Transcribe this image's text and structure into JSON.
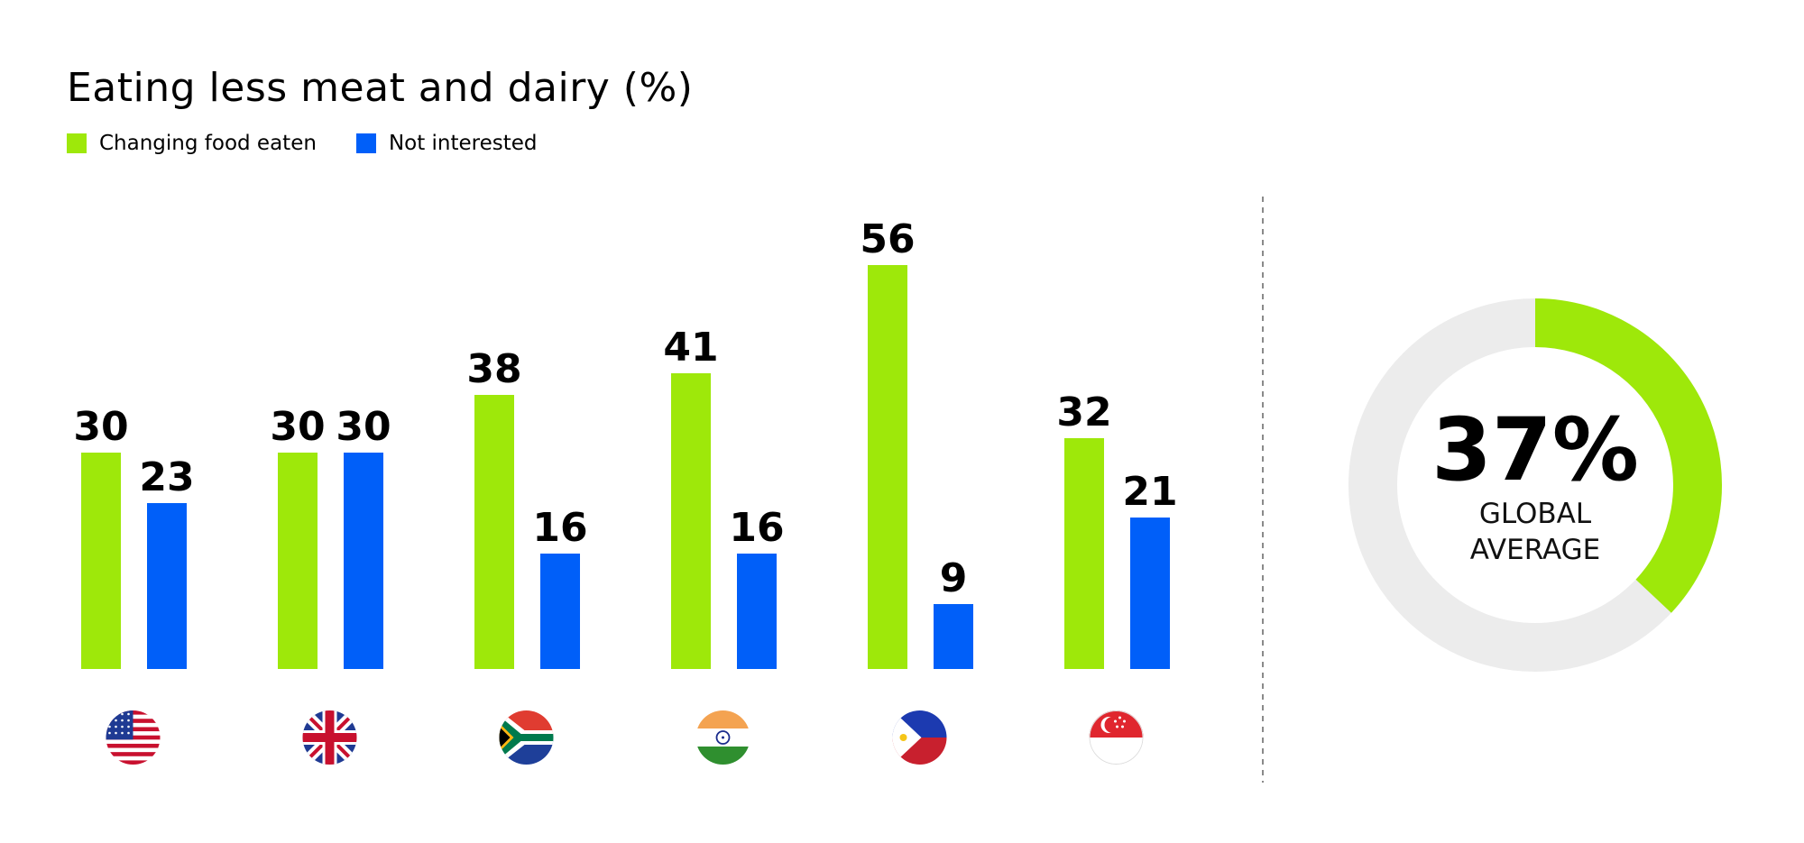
{
  "chart_data": {
    "type": "bar",
    "title": "Eating less meat and dairy (%)",
    "categories": [
      "United States",
      "United Kingdom",
      "South Africa",
      "India",
      "Philippines",
      "Singapore"
    ],
    "category_icons": [
      "flag-us-icon",
      "flag-uk-icon",
      "flag-za-icon",
      "flag-in-icon",
      "flag-ph-icon",
      "flag-sg-icon"
    ],
    "series": [
      {
        "name": "Changing food eaten",
        "color": "#9ee80a",
        "values": [
          30,
          30,
          38,
          41,
          56,
          32
        ]
      },
      {
        "name": "Not interested",
        "color": "#005ff9",
        "values": [
          23,
          30,
          16,
          16,
          9,
          21
        ]
      }
    ],
    "ylim": [
      0,
      60
    ],
    "grid": false,
    "legend_position": "top-left"
  },
  "donut": {
    "value": 37,
    "value_label": "37%",
    "caption_line1": "GLOBAL",
    "caption_line2": "AVERAGE",
    "fill_color": "#9ee80a",
    "track_color": "#ececec"
  }
}
